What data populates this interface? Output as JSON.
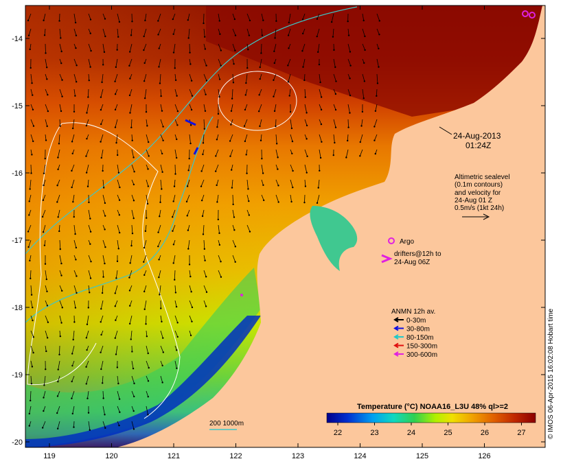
{
  "map": {
    "datetime_line1": "24-Aug-2013",
    "datetime_line2": "01:24Z",
    "altimetric_lines": [
      "Altimetric sealevel",
      "(0.1m contours)",
      "and velocity for",
      "24-Aug 01 Z",
      "0.5m/s (1kt 24h)"
    ],
    "argo_label": "Argo",
    "drifters_line1": "drifters@12h to",
    "drifters_line2": "24-Aug 06Z",
    "anmn_title": "ANMN 12h av.",
    "anmn_legend": [
      {
        "label": "0-30m",
        "color": "#000000"
      },
      {
        "label": "30-80m",
        "color": "#1010e0"
      },
      {
        "label": "80-150m",
        "color": "#20c8c8"
      },
      {
        "label": "150-300m",
        "color": "#e01010"
      },
      {
        "label": "300-600m",
        "color": "#e020e0"
      }
    ],
    "isobath_label": "200  1000m",
    "colorbar_title": "Temperature (°C) NOAA16_L3U 48% ql>=2",
    "colorbar_ticks": [
      "22",
      "23",
      "24",
      "25",
      "26",
      "27"
    ],
    "credit": "© IMOS 06-Apr-2015 16:02:08 Hobart time",
    "x_ticks": [
      "119",
      "120",
      "121",
      "122",
      "123",
      "124",
      "125",
      "126"
    ],
    "y_ticks": [
      "-14",
      "-15",
      "-16",
      "-17",
      "-18",
      "-19",
      "-20"
    ],
    "colors": {
      "land": "#fcc79c",
      "isobath": "#3cc8c8",
      "sealevel_contour": "#ffffff",
      "argo": "#e020e0",
      "colorbar_stops": [
        "#00008b",
        "#0040e0",
        "#00b0f0",
        "#20e0a0",
        "#40d040",
        "#c8f000",
        "#f0d000",
        "#f09000",
        "#e05000",
        "#b01800",
        "#8b0000"
      ]
    }
  }
}
